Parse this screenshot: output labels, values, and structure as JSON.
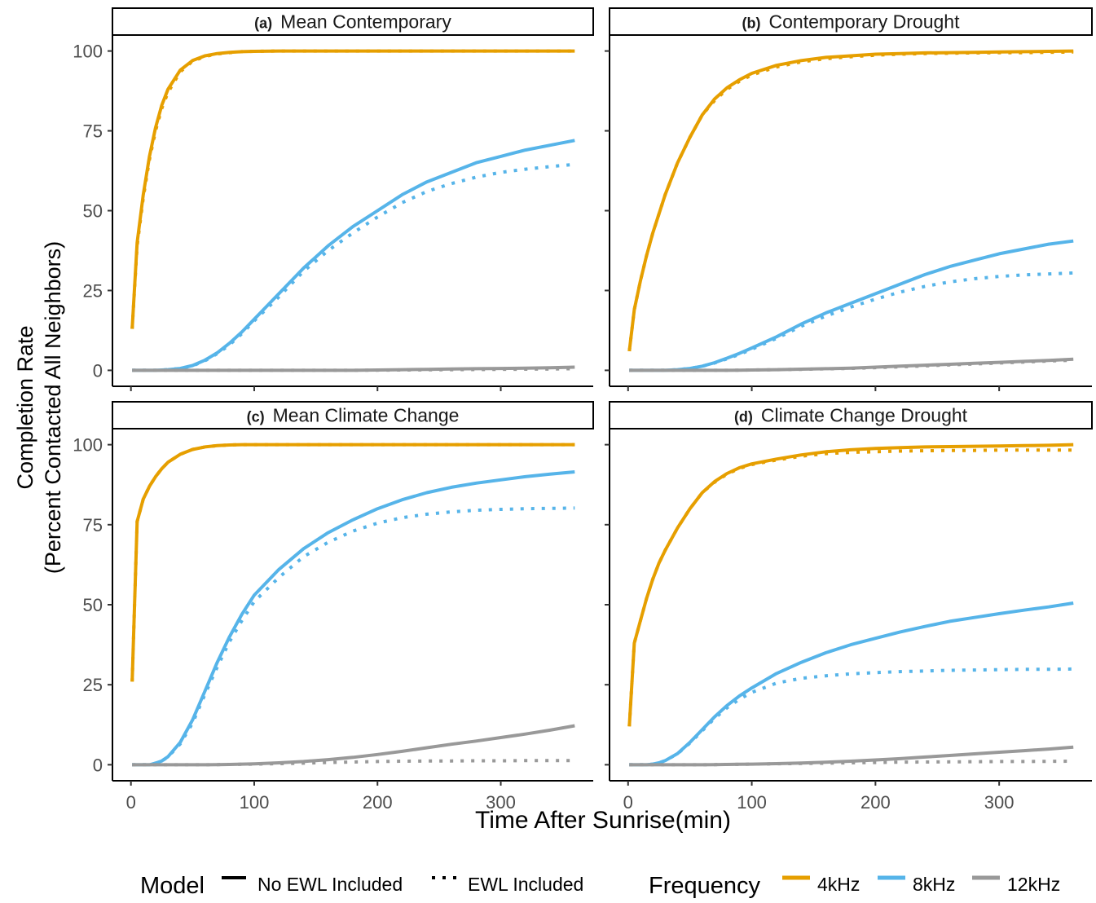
{
  "chart_data": {
    "type": "line",
    "xlabel": "Time After Sunrise(min)",
    "ylabel_line1": "Completion Rate",
    "ylabel_line2": "(Percent Contacted All Neighbors)",
    "xlim": [
      -15,
      375
    ],
    "ylim": [
      -5,
      105
    ],
    "xticks": [
      0,
      100,
      200,
      300
    ],
    "yticks": [
      0,
      25,
      50,
      75,
      100
    ],
    "grid": false,
    "legend": {
      "position": "bottom",
      "model_title": "Model",
      "model_items": [
        {
          "label": "No EWL Included",
          "style": "solid"
        },
        {
          "label": "EWL Included",
          "style": "dotted"
        }
      ],
      "frequency_title": "Frequency",
      "frequency_items": [
        {
          "label": "4kHz",
          "color": "#E69F00"
        },
        {
          "label": "8kHz",
          "color": "#56B4E9"
        },
        {
          "label": "12kHz",
          "color": "#999999"
        }
      ]
    },
    "colors": {
      "4kHz": "#E69F00",
      "8kHz": "#56B4E9",
      "12kHz": "#999999"
    },
    "x": [
      1,
      5,
      10,
      15,
      20,
      25,
      30,
      40,
      50,
      60,
      70,
      80,
      90,
      100,
      120,
      140,
      160,
      180,
      200,
      220,
      240,
      260,
      280,
      300,
      320,
      340,
      360
    ],
    "panels": [
      {
        "tag": "(a)",
        "title": "Mean Contemporary",
        "series": [
          {
            "frequency": "4kHz",
            "model": "No EWL Included",
            "values": [
              13,
              40,
              55,
              67,
              76,
              83,
              88,
              94,
              97,
              98.5,
              99.2,
              99.6,
              99.8,
              99.9,
              100,
              100,
              100,
              100,
              100,
              100,
              100,
              100,
              100,
              100,
              100,
              100,
              100
            ]
          },
          {
            "frequency": "4kHz",
            "model": "EWL Included",
            "values": [
              13,
              39,
              54,
              66,
              75,
              82,
              87,
              93.5,
              96.8,
              98.3,
              99.1,
              99.5,
              99.8,
              99.9,
              100,
              100,
              100,
              100,
              100,
              100,
              100,
              100,
              100,
              100,
              100,
              100,
              100
            ]
          },
          {
            "frequency": "8kHz",
            "model": "No EWL Included",
            "values": [
              0,
              0,
              0,
              0,
              0,
              0.1,
              0.2,
              0.6,
              1.5,
              3.2,
              5.5,
              8.5,
              12,
              16,
              24,
              32,
              39,
              45,
              50,
              55,
              59,
              62,
              65,
              67,
              69,
              70.5,
              72
            ]
          },
          {
            "frequency": "8kHz",
            "model": "EWL Included",
            "values": [
              0,
              0,
              0,
              0,
              0,
              0.1,
              0.2,
              0.6,
              1.4,
              3.0,
              5.2,
              8.0,
              11.5,
              15.5,
              23,
              31,
              37.5,
              43,
              48,
              52.5,
              56,
              58.5,
              60.5,
              62,
              63,
              63.8,
              64.5
            ]
          },
          {
            "frequency": "12kHz",
            "model": "No EWL Included",
            "values": [
              0,
              0,
              0,
              0,
              0,
              0,
              0,
              0,
              0,
              0,
              0,
              0,
              0,
              0,
              0,
              0,
              0,
              0,
              0.1,
              0.2,
              0.3,
              0.4,
              0.5,
              0.6,
              0.7,
              0.8,
              1.0
            ]
          },
          {
            "frequency": "12kHz",
            "model": "EWL Included",
            "values": [
              0,
              0,
              0,
              0,
              0,
              0,
              0,
              0,
              0,
              0,
              0,
              0,
              0,
              0,
              0,
              0,
              0,
              0,
              0.05,
              0.1,
              0.15,
              0.2,
              0.25,
              0.3,
              0.35,
              0.4,
              0.5
            ]
          }
        ]
      },
      {
        "tag": "(b)",
        "title": "Contemporary Drought",
        "series": [
          {
            "frequency": "4kHz",
            "model": "No EWL Included",
            "values": [
              6,
              19,
              28,
              36,
              43,
              49,
              55,
              65,
              73,
              80,
              85,
              88.5,
              91,
              93,
              95.5,
              97,
              98,
              98.5,
              99,
              99.2,
              99.4,
              99.5,
              99.6,
              99.7,
              99.8,
              99.9,
              100
            ]
          },
          {
            "frequency": "4kHz",
            "model": "EWL Included",
            "values": [
              6,
              19,
              28,
              36,
              43,
              49,
              55,
              65,
              73,
              80,
              84.5,
              88,
              90.5,
              92.5,
              95,
              96.6,
              97.6,
              98.2,
              98.7,
              99,
              99.2,
              99.3,
              99.4,
              99.5,
              99.5,
              99.6,
              99.7
            ]
          },
          {
            "frequency": "8kHz",
            "model": "No EWL Included",
            "values": [
              0,
              0,
              0,
              0,
              0,
              0,
              0,
              0.2,
              0.6,
              1.3,
              2.4,
              3.8,
              5.3,
              7,
              10.5,
              14.5,
              18,
              21,
              24,
              27,
              30,
              32.5,
              34.5,
              36.5,
              38,
              39.5,
              40.5
            ]
          },
          {
            "frequency": "8kHz",
            "model": "EWL Included",
            "values": [
              0,
              0,
              0,
              0,
              0,
              0,
              0,
              0.2,
              0.6,
              1.3,
              2.3,
              3.6,
              5.0,
              6.6,
              10,
              13.8,
              17,
              19.8,
              22.3,
              24.5,
              26.3,
              27.7,
              28.7,
              29.4,
              29.9,
              30.2,
              30.5
            ]
          },
          {
            "frequency": "12kHz",
            "model": "No EWL Included",
            "values": [
              0,
              0,
              0,
              0,
              0,
              0,
              0,
              0,
              0,
              0,
              0,
              0,
              0.05,
              0.1,
              0.2,
              0.35,
              0.5,
              0.7,
              1.0,
              1.3,
              1.6,
              1.9,
              2.2,
              2.5,
              2.8,
              3.1,
              3.5
            ]
          },
          {
            "frequency": "12kHz",
            "model": "EWL Included",
            "values": [
              0,
              0,
              0,
              0,
              0,
              0,
              0,
              0,
              0,
              0,
              0,
              0,
              0.05,
              0.1,
              0.2,
              0.3,
              0.45,
              0.6,
              0.85,
              1.1,
              1.4,
              1.7,
              2.0,
              2.3,
              2.6,
              2.9,
              3.2
            ]
          }
        ]
      },
      {
        "tag": "(c)",
        "title": "Mean Climate Change",
        "series": [
          {
            "frequency": "4kHz",
            "model": "No EWL Included",
            "values": [
              26,
              76,
              83,
              87,
              90,
              92.5,
              94.5,
              97,
              98.5,
              99.3,
              99.7,
              99.9,
              100,
              100,
              100,
              100,
              100,
              100,
              100,
              100,
              100,
              100,
              100,
              100,
              100,
              100,
              100
            ]
          },
          {
            "frequency": "4kHz",
            "model": "EWL Included",
            "values": [
              26,
              76,
              83,
              87,
              90,
              92.5,
              94.5,
              97,
              98.5,
              99.3,
              99.7,
              99.9,
              100,
              100,
              100,
              100,
              100,
              100,
              100,
              100,
              100,
              100,
              100,
              100,
              100,
              100,
              100
            ]
          },
          {
            "frequency": "8kHz",
            "model": "No EWL Included",
            "values": [
              0,
              0,
              0,
              0,
              0.5,
              1.2,
              2.5,
              7,
              14,
              23,
              32,
              40,
              47,
              53,
              61,
              67.5,
              72.5,
              76.5,
              80,
              82.8,
              85,
              86.7,
              88,
              89,
              90,
              90.8,
              91.5
            ]
          },
          {
            "frequency": "8kHz",
            "model": "EWL Included",
            "values": [
              0,
              0,
              0,
              0,
              0.5,
              1.2,
              2.4,
              6.5,
              13,
              22,
              30.5,
              38.5,
              45,
              51,
              58.5,
              65,
              69.5,
              73,
              75.5,
              77.2,
              78.3,
              79,
              79.5,
              79.8,
              80,
              80.1,
              80.2
            ]
          },
          {
            "frequency": "12kHz",
            "model": "No EWL Included",
            "values": [
              0,
              0,
              0,
              0,
              0,
              0,
              0,
              0,
              0,
              0,
              0.05,
              0.1,
              0.2,
              0.3,
              0.6,
              1.0,
              1.6,
              2.3,
              3.2,
              4.2,
              5.3,
              6.4,
              7.4,
              8.5,
              9.6,
              10.8,
              12.2
            ]
          },
          {
            "frequency": "12kHz",
            "model": "EWL Included",
            "values": [
              0,
              0,
              0,
              0,
              0,
              0,
              0,
              0,
              0,
              0,
              0.05,
              0.1,
              0.15,
              0.2,
              0.35,
              0.5,
              0.7,
              0.85,
              1.0,
              1.1,
              1.15,
              1.2,
              1.25,
              1.25,
              1.3,
              1.3,
              1.3
            ]
          }
        ]
      },
      {
        "tag": "(d)",
        "title": "Climate Change Drought",
        "series": [
          {
            "frequency": "4kHz",
            "model": "No EWL Included",
            "values": [
              12,
              38,
              45,
              52,
              58,
              63,
              67,
              74,
              80,
              85,
              88.5,
              91,
              92.8,
              94,
              95.5,
              96.8,
              97.8,
              98.4,
              98.8,
              99.1,
              99.3,
              99.4,
              99.5,
              99.6,
              99.7,
              99.8,
              100
            ]
          },
          {
            "frequency": "4kHz",
            "model": "EWL Included",
            "values": [
              12,
              38,
              45,
              52,
              58,
              63,
              67,
              74,
              80,
              85,
              88.3,
              90.8,
              92.6,
              93.8,
              95.2,
              96.4,
              97.2,
              97.6,
              97.8,
              98.0,
              98.1,
              98.2,
              98.2,
              98.3,
              98.3,
              98.3,
              98.3
            ]
          },
          {
            "frequency": "8kHz",
            "model": "No EWL Included",
            "values": [
              0,
              0,
              0,
              0,
              0.2,
              0.6,
              1.3,
              3.5,
              7,
              11,
              15,
              18.5,
              21.5,
              24,
              28.5,
              32,
              35,
              37.5,
              39.5,
              41.5,
              43.2,
              44.8,
              46,
              47.2,
              48.3,
              49.3,
              50.5
            ]
          },
          {
            "frequency": "8kHz",
            "model": "EWL Included",
            "values": [
              0,
              0,
              0,
              0,
              0.2,
              0.6,
              1.3,
              3.4,
              6.8,
              10.6,
              14.5,
              17.8,
              20.5,
              22.6,
              25.5,
              27,
              27.8,
              28.4,
              28.8,
              29.1,
              29.3,
              29.5,
              29.6,
              29.7,
              29.8,
              29.8,
              29.9
            ]
          },
          {
            "frequency": "12kHz",
            "model": "No EWL Included",
            "values": [
              0,
              0,
              0,
              0,
              0,
              0,
              0,
              0,
              0,
              0,
              0.05,
              0.1,
              0.15,
              0.2,
              0.35,
              0.55,
              0.8,
              1.1,
              1.5,
              1.9,
              2.4,
              2.9,
              3.4,
              3.9,
              4.4,
              4.9,
              5.5
            ]
          },
          {
            "frequency": "12kHz",
            "model": "EWL Included",
            "values": [
              0,
              0,
              0,
              0,
              0,
              0,
              0,
              0,
              0,
              0,
              0.05,
              0.1,
              0.15,
              0.2,
              0.3,
              0.4,
              0.5,
              0.6,
              0.7,
              0.8,
              0.85,
              0.9,
              0.95,
              1.0,
              1.0,
              1.05,
              1.1
            ]
          }
        ]
      }
    ]
  }
}
